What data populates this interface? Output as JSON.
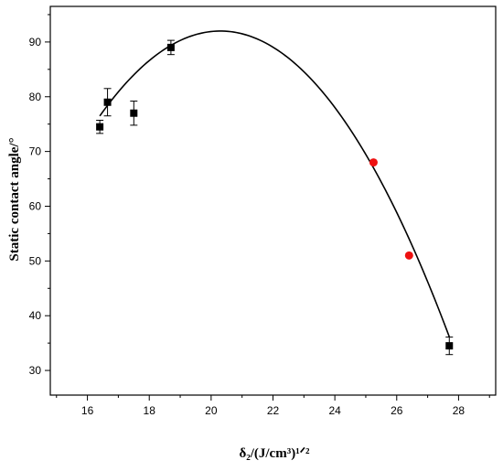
{
  "chart_data": {
    "type": "scatter",
    "title": "",
    "xlabel": "δ₂/(J/cm³)¹ᐟ²",
    "ylabel": "Static contact angle/°",
    "xlim": [
      14.8,
      29.2
    ],
    "ylim": [
      25.5,
      96.5
    ],
    "x_ticks": [
      16,
      18,
      20,
      22,
      24,
      26,
      28
    ],
    "y_ticks": [
      30,
      40,
      50,
      60,
      70,
      80,
      90
    ],
    "grid": false,
    "legend": "none",
    "series": [
      {
        "marker": "square",
        "color": "#000000",
        "points": [
          {
            "x": 16.4,
            "y": 74.5,
            "err": 1.2
          },
          {
            "x": 16.65,
            "y": 79.0,
            "err": 2.5
          },
          {
            "x": 17.5,
            "y": 77.0,
            "err": 2.2
          },
          {
            "x": 18.7,
            "y": 89.0,
            "err": 1.3
          },
          {
            "x": 27.7,
            "y": 34.5,
            "err": 1.6
          }
        ]
      },
      {
        "marker": "circle",
        "color": "#ee1111",
        "points": [
          {
            "x": 25.25,
            "y": 68.0
          },
          {
            "x": 26.4,
            "y": 51.0
          }
        ]
      }
    ],
    "fit_curve": {
      "type": "quadratic",
      "vertex_x": 20.3,
      "vertex_y": 92.0,
      "curvature": 1.02,
      "x_range": [
        16.4,
        27.7
      ],
      "color": "#000000"
    }
  }
}
